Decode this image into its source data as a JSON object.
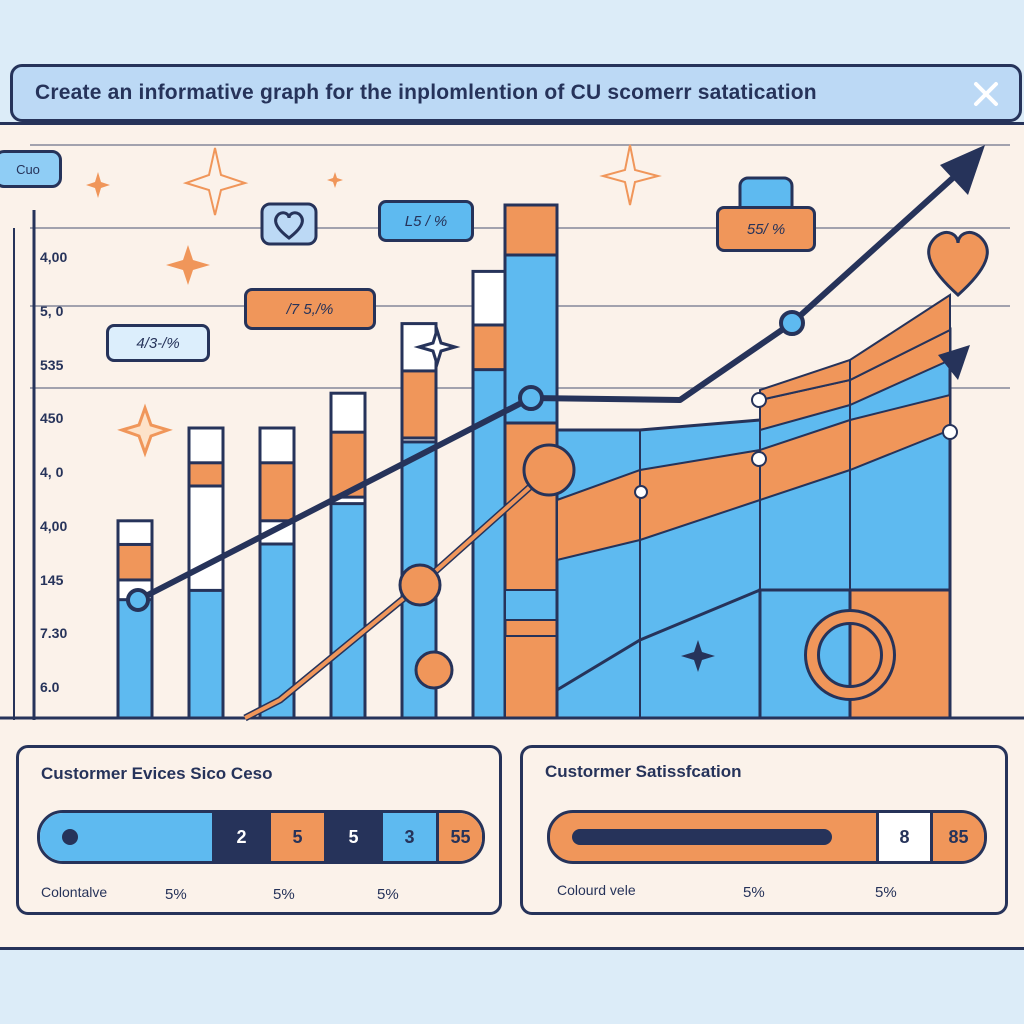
{
  "window": {
    "title": "Create an informative graph for the inplomlention of CU scomerr satatication",
    "chip_label": "Cuo"
  },
  "chart_data": {
    "type": "bar",
    "y_tick_labels": [
      "4,00",
      "5, 0",
      "535",
      "450",
      "4, 0",
      "4,00",
      "145",
      "7.30",
      "6.0"
    ],
    "bars": [
      {
        "value": 0.34,
        "blue": 0.6,
        "orange": 0.18
      },
      {
        "value": 0.5,
        "blue": 0.44,
        "orange": 0.08
      },
      {
        "value": 0.5,
        "blue": 0.6,
        "orange": 0.2
      },
      {
        "value": 0.56,
        "blue": 0.66,
        "orange": 0.2
      },
      {
        "value": 0.68,
        "blue": 0.7,
        "orange": 0.17
      },
      {
        "value": 0.77,
        "blue": 0.78,
        "orange": 0.11
      }
    ],
    "callouts": [
      "4/3-/%",
      "/7 5,/%",
      "L5 / %",
      "55/ %"
    ],
    "colors": {
      "blue": "#5ebaf0",
      "orange": "#f0965a",
      "navy": "#26335a",
      "cream": "#fbf2ea",
      "light": "#8fcdf5"
    }
  },
  "panels": {
    "left": {
      "title": "Custormer Evices Sico Ceso",
      "legend": "Colontalve",
      "segments": [
        "2",
        "5",
        "5",
        "3",
        "55"
      ],
      "pcts": [
        "5%",
        "5%",
        "5%"
      ]
    },
    "right": {
      "title": "Custormer Satissfcation",
      "legend": "Colourd vele",
      "segments": [
        "8",
        "85"
      ],
      "pcts": [
        "5%",
        "5%"
      ]
    }
  }
}
